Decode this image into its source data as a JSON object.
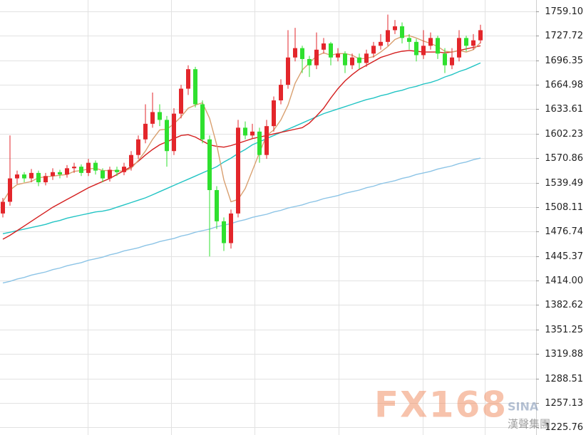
{
  "chart_data": {
    "type": "candlestick",
    "ylim": [
      1216.0,
      1773.7
    ],
    "yticks": [
      {
        "value": 1759.1,
        "label": "1759.10"
      },
      1727.72,
      1696.35,
      1664.98,
      1633.61,
      1602.23,
      1570.86,
      1539.49,
      1508.11,
      1476.74,
      1445.37,
      {
        "value": 1414,
        "label": "1414.00"
      },
      1382.62,
      1351.25,
      1319.88,
      1288.51,
      1257.13,
      1225.76
    ],
    "grid": true,
    "up_color": "#e3262b",
    "down_color": "#2fe02f",
    "open": [
      1500,
      1515,
      1545,
      1550,
      1545,
      1552,
      1540,
      1548,
      1553,
      1550,
      1558,
      1560,
      1552,
      1565,
      1555,
      1545,
      1556,
      1553,
      1560,
      1575,
      1595,
      1615,
      1630,
      1620,
      1580,
      1628,
      1660,
      1685,
      1640,
      1595,
      1530,
      1490,
      1462,
      1500,
      1610,
      1600,
      1605,
      1575,
      1612,
      1645,
      1665,
      1700,
      1712,
      1698,
      1690,
      1710,
      1718,
      1700,
      1705,
      1690,
      1700,
      1693,
      1705,
      1715,
      1720,
      1735,
      1740,
      1725,
      1720,
      1703,
      1715,
      1725,
      1705,
      1690,
      1700,
      1725,
      1715,
      1722
    ],
    "high": [
      1520,
      1600,
      1555,
      1553,
      1557,
      1555,
      1552,
      1558,
      1556,
      1562,
      1565,
      1563,
      1570,
      1568,
      1558,
      1560,
      1560,
      1565,
      1580,
      1600,
      1640,
      1655,
      1640,
      1625,
      1635,
      1665,
      1690,
      1688,
      1645,
      1600,
      1535,
      1495,
      1505,
      1620,
      1618,
      1615,
      1610,
      1620,
      1650,
      1672,
      1735,
      1738,
      1715,
      1702,
      1732,
      1725,
      1720,
      1712,
      1708,
      1705,
      1705,
      1710,
      1720,
      1730,
      1755,
      1748,
      1745,
      1730,
      1724,
      1735,
      1732,
      1728,
      1712,
      1712,
      1735,
      1728,
      1730,
      1742
    ],
    "low": [
      1495,
      1510,
      1538,
      1540,
      1540,
      1535,
      1536,
      1543,
      1545,
      1546,
      1552,
      1548,
      1548,
      1550,
      1540,
      1541,
      1548,
      1549,
      1555,
      1570,
      1590,
      1610,
      1612,
      1560,
      1575,
      1622,
      1652,
      1636,
      1590,
      1445,
      1480,
      1452,
      1455,
      1495,
      1595,
      1596,
      1565,
      1570,
      1605,
      1640,
      1660,
      1695,
      1680,
      1675,
      1685,
      1705,
      1690,
      1695,
      1680,
      1685,
      1685,
      1688,
      1700,
      1710,
      1715,
      1730,
      1718,
      1710,
      1695,
      1698,
      1710,
      1698,
      1680,
      1685,
      1695,
      1708,
      1710,
      1718
    ],
    "close": [
      1515,
      1545,
      1550,
      1545,
      1552,
      1540,
      1548,
      1553,
      1550,
      1558,
      1560,
      1552,
      1565,
      1555,
      1545,
      1556,
      1553,
      1560,
      1575,
      1595,
      1615,
      1630,
      1620,
      1580,
      1628,
      1660,
      1685,
      1640,
      1595,
      1530,
      1490,
      1462,
      1500,
      1610,
      1600,
      1605,
      1575,
      1612,
      1645,
      1665,
      1700,
      1712,
      1698,
      1690,
      1710,
      1718,
      1700,
      1705,
      1690,
      1700,
      1693,
      1705,
      1715,
      1720,
      1735,
      1740,
      1725,
      1720,
      1703,
      1715,
      1725,
      1705,
      1690,
      1700,
      1725,
      1715,
      1722,
      1735
    ],
    "lines": [
      {
        "color": "#8cc4e6",
        "values": [
          1411,
          1413,
          1416,
          1418,
          1421,
          1423,
          1425,
          1428,
          1430,
          1433,
          1435,
          1437,
          1440,
          1442,
          1444,
          1447,
          1449,
          1452,
          1454,
          1456,
          1459,
          1461,
          1464,
          1466,
          1468,
          1471,
          1473,
          1476,
          1478,
          1480,
          1483,
          1485,
          1487,
          1490,
          1492,
          1495,
          1497,
          1499,
          1502,
          1504,
          1507,
          1509,
          1511,
          1514,
          1516,
          1519,
          1521,
          1523,
          1526,
          1528,
          1530,
          1533,
          1535,
          1538,
          1540,
          1542,
          1545,
          1547,
          1550,
          1552,
          1554,
          1557,
          1559,
          1561,
          1564,
          1566,
          1569,
          1571
        ]
      },
      {
        "color": "#22c4c4",
        "values": [
          1474,
          1476,
          1478,
          1480,
          1482,
          1484,
          1486,
          1489,
          1491,
          1494,
          1496,
          1498,
          1500,
          1502,
          1503,
          1505,
          1508,
          1511,
          1514,
          1517,
          1520,
          1524,
          1528,
          1532,
          1536,
          1540,
          1544,
          1548,
          1552,
          1556,
          1560,
          1566,
          1571,
          1577,
          1582,
          1588,
          1592,
          1596,
          1600,
          1604,
          1608,
          1612,
          1616,
          1620,
          1624,
          1628,
          1631,
          1634,
          1637,
          1640,
          1643,
          1646,
          1648,
          1651,
          1653,
          1656,
          1658,
          1661,
          1663,
          1666,
          1668,
          1671,
          1675,
          1678,
          1682,
          1685,
          1689,
          1693
        ]
      },
      {
        "color": "#d41f1f",
        "values": [
          1467,
          1472,
          1478,
          1484,
          1490,
          1496,
          1502,
          1508,
          1513,
          1518,
          1523,
          1528,
          1533,
          1537,
          1541,
          1545,
          1550,
          1555,
          1560,
          1567,
          1575,
          1582,
          1588,
          1592,
          1596,
          1600,
          1601,
          1598,
          1593,
          1588,
          1586,
          1585,
          1587,
          1590,
          1593,
          1596,
          1598,
          1600,
          1602,
          1604,
          1606,
          1608,
          1610,
          1616,
          1625,
          1635,
          1648,
          1660,
          1670,
          1678,
          1685,
          1690,
          1695,
          1700,
          1703,
          1706,
          1708,
          1709,
          1708,
          1707,
          1707,
          1707,
          1706,
          1707,
          1709,
          1711,
          1713,
          1715
        ]
      },
      {
        "color": "#d9a070",
        "values": [
          1515,
          1530,
          1537,
          1539,
          1541,
          1546,
          1547,
          1548,
          1549,
          1550,
          1554,
          1555,
          1557,
          1558,
          1555,
          1555,
          1555,
          1554,
          1558,
          1568,
          1580,
          1595,
          1607,
          1608,
          1615,
          1624,
          1635,
          1639,
          1642,
          1622,
          1588,
          1543,
          1515,
          1518,
          1532,
          1555,
          1578,
          1600,
          1607,
          1620,
          1639,
          1667,
          1684,
          1693,
          1702,
          1706,
          1703,
          1705,
          1705,
          1703,
          1698,
          1699,
          1701,
          1707,
          1714,
          1723,
          1727,
          1728,
          1725,
          1721,
          1718,
          1714,
          1708,
          1707,
          1709,
          1707,
          1710,
          1719
        ]
      }
    ]
  },
  "watermark": {
    "logo": "FX168",
    "company": "漢聲集團",
    "site": "SINA"
  }
}
